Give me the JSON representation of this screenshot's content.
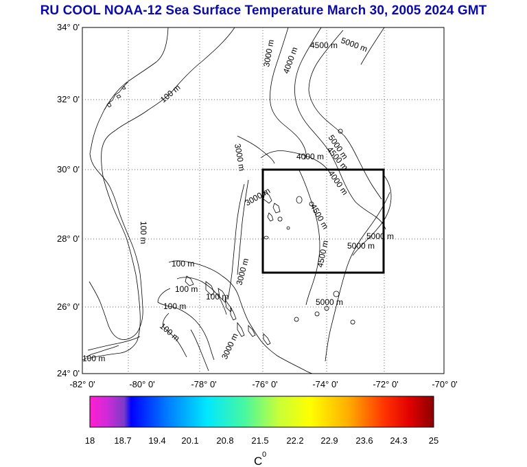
{
  "title": "RU COOL  NOAA-12 Sea Surface Temperature March 30, 2005 2024 GMT",
  "map": {
    "lat_labels": [
      "34° 0'",
      "32° 0'",
      "30° 0'",
      "28° 0'",
      "26° 0'",
      "24° 0'"
    ],
    "lon_labels": [
      "-82° 0'",
      "-80° 0'",
      "-78° 0'",
      "-76° 0'",
      "-74° 0'",
      "-72° 0'",
      "-70° 0'"
    ],
    "contour_labels": [
      "100 m",
      "100 m",
      "100 m",
      "100 m",
      "100 m",
      "100 m",
      "100 m",
      "100 m",
      "3000 m",
      "3000 m",
      "3000 m",
      "3000 m",
      "3000 m",
      "4000 m",
      "4000 m",
      "4000 m",
      "4500 m",
      "4500 m",
      "4500 m",
      "4500 m",
      "5000 m",
      "5000 m",
      "5000 m",
      "5000 m",
      "5000 m"
    ],
    "region_box": {
      "lon": [
        -76,
        -72
      ],
      "lat": [
        27,
        30
      ]
    }
  },
  "colorbar": {
    "ticks": [
      "18",
      "18.7",
      "19.4",
      "20.1",
      "20.8",
      "21.5",
      "22.2",
      "22.9",
      "23.6",
      "24.3",
      "25"
    ],
    "unit": "C",
    "unit_sup": "0",
    "colors": [
      "#ff1fd0",
      "#7a3cc8",
      "#0000ff",
      "#0077ff",
      "#00e8ff",
      "#48f7a0",
      "#c8ff38",
      "#ffff00",
      "#ffb000",
      "#ff3000",
      "#e00000",
      "#8c0000"
    ]
  }
}
